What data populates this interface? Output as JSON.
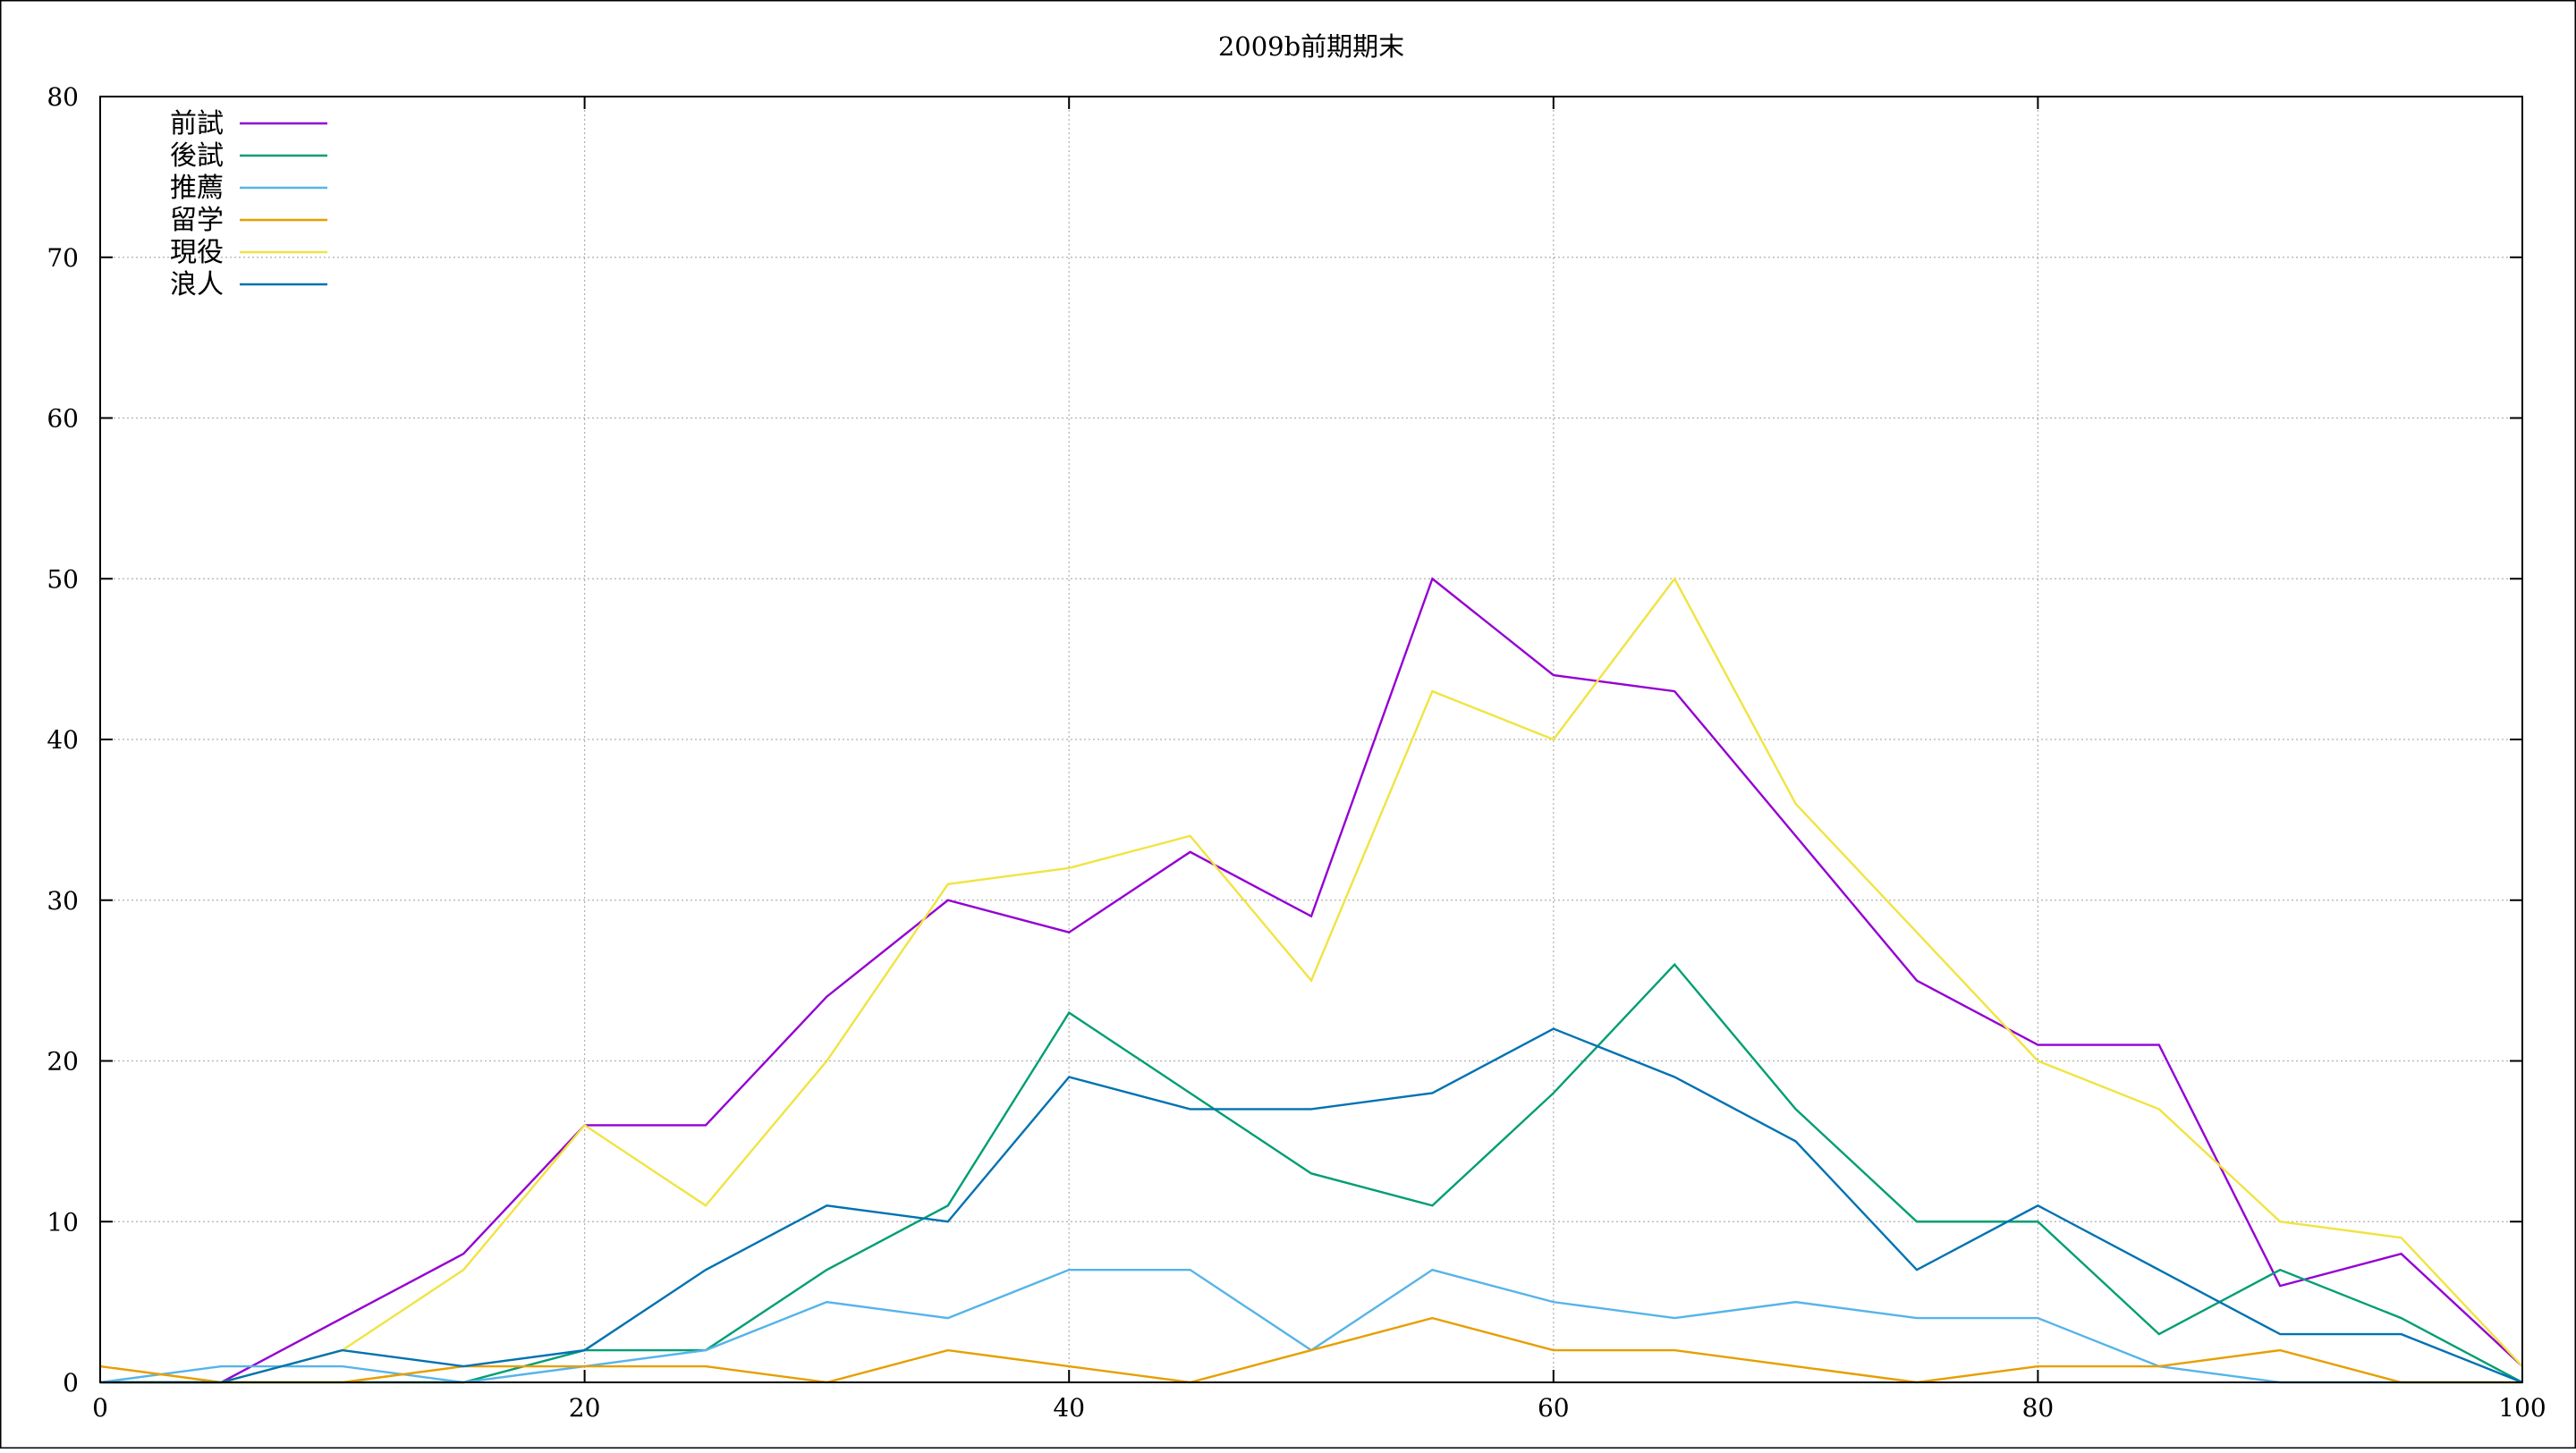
{
  "chart_data": {
    "type": "line",
    "title": "2009b前期期末",
    "xlabel": "",
    "ylabel": "",
    "xlim": [
      0,
      100
    ],
    "ylim": [
      0,
      80
    ],
    "xticks": [
      "0",
      "20",
      "40",
      "60",
      "80",
      "100"
    ],
    "yticks": [
      "0",
      "10",
      "20",
      "30",
      "40",
      "50",
      "60",
      "70",
      "80"
    ],
    "grid": true,
    "legend_position": "top-left",
    "x": [
      0,
      5,
      10,
      15,
      20,
      25,
      30,
      35,
      40,
      45,
      50,
      55,
      60,
      65,
      70,
      75,
      80,
      85,
      90,
      95,
      100
    ],
    "series": [
      {
        "name": "前試",
        "color": "#9400d3",
        "values": [
          0,
          0,
          4,
          8,
          16,
          16,
          24,
          30,
          28,
          33,
          29,
          50,
          44,
          43,
          34,
          25,
          21,
          21,
          6,
          8,
          1
        ]
      },
      {
        "name": "後試",
        "color": "#009e73",
        "values": [
          0,
          0,
          0,
          0,
          2,
          2,
          7,
          11,
          23,
          18,
          13,
          11,
          18,
          26,
          17,
          10,
          10,
          3,
          7,
          4,
          0
        ]
      },
      {
        "name": "推薦",
        "color": "#56b4e9",
        "values": [
          0,
          1,
          1,
          0,
          1,
          2,
          5,
          4,
          7,
          7,
          2,
          7,
          5,
          4,
          5,
          4,
          4,
          1,
          0,
          0,
          0
        ]
      },
      {
        "name": "留学",
        "color": "#e69f00",
        "values": [
          1,
          0,
          0,
          1,
          1,
          1,
          0,
          2,
          1,
          0,
          2,
          4,
          2,
          2,
          1,
          0,
          1,
          1,
          2,
          0,
          0
        ]
      },
      {
        "name": "現役",
        "color": "#f0e442",
        "values": [
          0,
          0,
          2,
          7,
          16,
          11,
          20,
          31,
          32,
          34,
          25,
          43,
          40,
          50,
          36,
          28,
          20,
          17,
          10,
          9,
          1
        ]
      },
      {
        "name": "浪人",
        "color": "#0072b2",
        "values": [
          0,
          0,
          2,
          1,
          2,
          7,
          11,
          10,
          19,
          17,
          17,
          18,
          22,
          19,
          15,
          7,
          11,
          7,
          3,
          3,
          0
        ]
      }
    ]
  }
}
